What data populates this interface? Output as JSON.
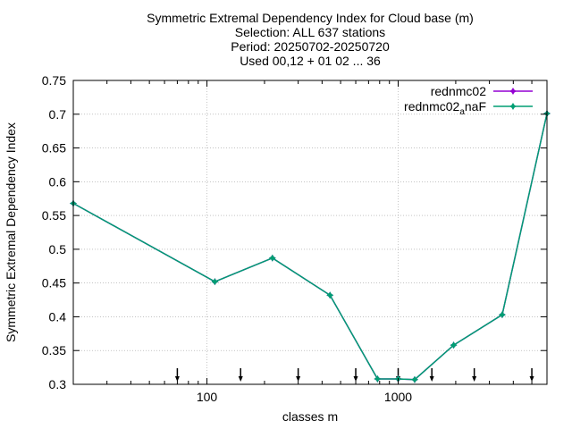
{
  "chart_data": {
    "type": "line",
    "title_lines": [
      "Symmetric Extremal Dependency Index  for Cloud base (m)",
      "Selection: ALL    637 stations",
      "Period: 20250702-20250720",
      "Used 00,12 + 01 02 ... 36"
    ],
    "xlabel": "classes m",
    "ylabel": "Symmetric Extremal Dependency Index",
    "x_scale": "log",
    "xlim": [
      20,
      6000
    ],
    "ylim": [
      0.3,
      0.75
    ],
    "y_ticks": [
      0.3,
      0.35,
      0.4,
      0.45,
      0.5,
      0.55,
      0.6,
      0.65,
      0.7,
      0.75
    ],
    "y_tick_labels": [
      "0.3",
      "0.35",
      "0.4",
      "0.45",
      "0.5",
      "0.55",
      "0.6",
      "0.65",
      "0.7",
      "0.75"
    ],
    "x_ticks": [
      100,
      1000
    ],
    "x_tick_labels": [
      "100",
      "1000"
    ],
    "grid": true,
    "legend_position": "top-right",
    "class_markers": [
      70,
      150,
      300,
      600,
      1000,
      1500,
      2500,
      5000
    ],
    "x": [
      20,
      110,
      220,
      440,
      780,
      1000,
      1220,
      1950,
      3500,
      6000
    ],
    "series": [
      {
        "name": "rednmc02",
        "color": "#9400d3",
        "values": [
          0.568,
          0.452,
          0.487,
          0.432,
          0.308,
          0.308,
          0.307,
          0.358,
          0.403,
          0.701
        ]
      },
      {
        "name": "rednmc02",
        "name_subscript": "a",
        "name_suffix": "naF",
        "color": "#009e73",
        "values": [
          0.568,
          0.452,
          0.487,
          0.432,
          0.308,
          0.308,
          0.307,
          0.358,
          0.403,
          0.701
        ]
      }
    ]
  }
}
